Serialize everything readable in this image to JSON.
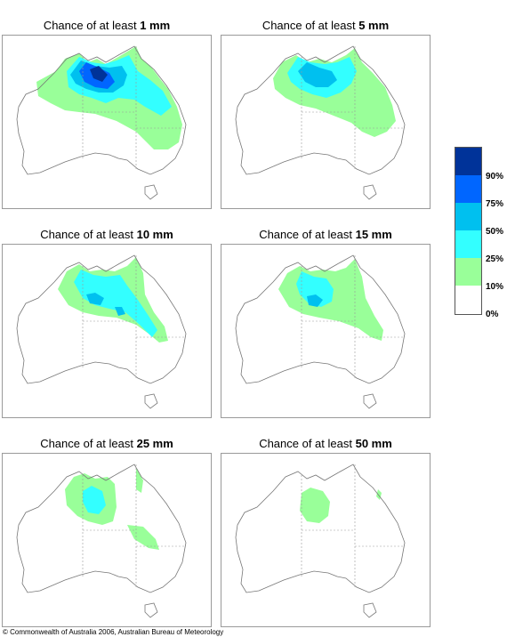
{
  "panels": [
    {
      "title_prefix": "Chance of at least ",
      "amount": "1 mm"
    },
    {
      "title_prefix": "Chance of at least ",
      "amount": "5 mm"
    },
    {
      "title_prefix": "Chance of at least ",
      "amount": "10 mm"
    },
    {
      "title_prefix": "Chance of at least ",
      "amount": "15 mm"
    },
    {
      "title_prefix": "Chance of at least ",
      "amount": "25 mm"
    },
    {
      "title_prefix": "Chance of at least ",
      "amount": "50 mm"
    }
  ],
  "legend": {
    "labels": [
      "90%",
      "75%",
      "50%",
      "25%",
      "10%",
      "0%"
    ],
    "colors": [
      "#003399",
      "#0066ff",
      "#00c0ef",
      "#33ffff",
      "#99ff99",
      "#ffffff"
    ]
  },
  "copyright": "© Commonwealth of Australia 2006, Australian Bureau of Meteorology"
}
